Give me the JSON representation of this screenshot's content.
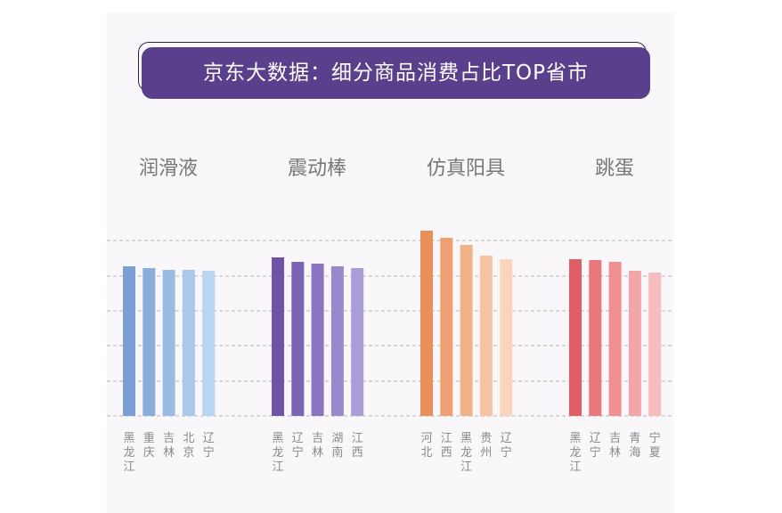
{
  "title": "京东大数据：细分商品消费占比TOP省市",
  "chart_data": [
    {
      "type": "bar",
      "title": "润滑液",
      "categories": [
        "黑龙江",
        "重庆",
        "吉林",
        "北京",
        "辽宁"
      ],
      "values": [
        84,
        83,
        82,
        82,
        81.5
      ],
      "colors": [
        "#7b9ed3",
        "#8aaddc",
        "#9bbbe3",
        "#a9c8ea",
        "#b9d6f1"
      ]
    },
    {
      "type": "bar",
      "title": "震动棒",
      "categories": [
        "黑龙江",
        "辽宁",
        "吉林",
        "湖南",
        "江西"
      ],
      "values": [
        89,
        86.5,
        85.5,
        84,
        83
      ],
      "colors": [
        "#6e53a7",
        "#7c63b4",
        "#8b75c0",
        "#9a88cc",
        "#ab9dd8"
      ]
    },
    {
      "type": "bar",
      "title": "仿真阳具",
      "categories": [
        "河北",
        "江西",
        "黑龙江",
        "贵州",
        "辽宁"
      ],
      "values": [
        104,
        100,
        96,
        90,
        88
      ],
      "colors": [
        "#e9905a",
        "#eea070",
        "#f2b288",
        "#f6c4a2",
        "#f9d5bd"
      ]
    },
    {
      "type": "bar",
      "title": "跳蛋",
      "categories": [
        "黑龙江",
        "辽宁",
        "吉林",
        "青海",
        "宁夏"
      ],
      "values": [
        88,
        87.5,
        86.5,
        81.5,
        80.5
      ],
      "colors": [
        "#e05f64",
        "#e8787c",
        "#ee8f92",
        "#f3a6a8",
        "#f7bcbe"
      ]
    }
  ]
}
